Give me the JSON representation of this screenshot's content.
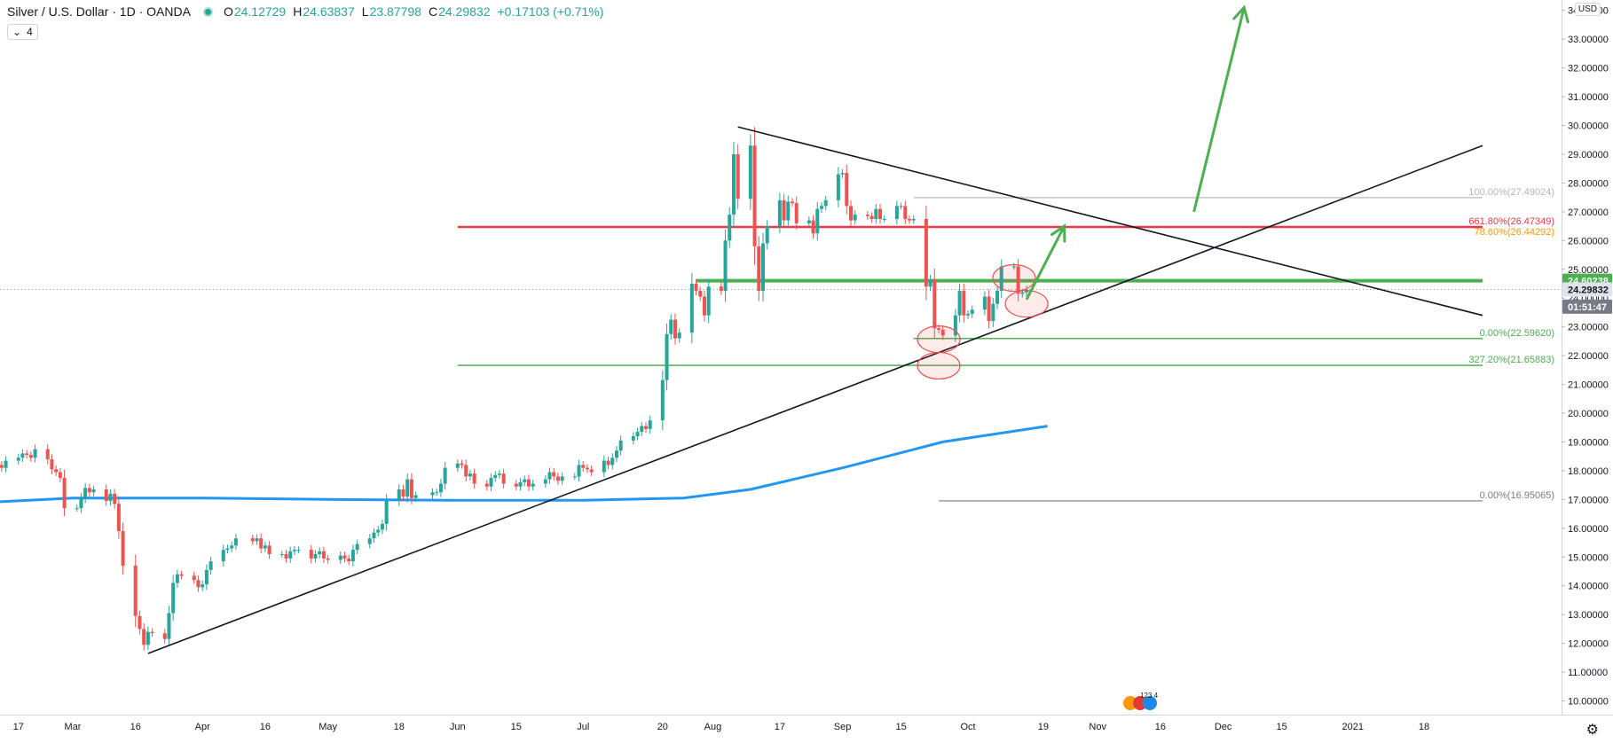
{
  "header": {
    "symbol": "Silver / U.S. Dollar · 1D · OANDA",
    "open_label": "O",
    "open": "24.12729",
    "high_label": "H",
    "high": "24.63837",
    "low_label": "L",
    "low": "23.87798",
    "close_label": "C",
    "close": "24.29832",
    "change": "+0.17103 (+0.71%)"
  },
  "indicator_toggle": "4",
  "axis": {
    "currency": "USD"
  },
  "price_tags": {
    "level": "24.60238",
    "last": "24.29832",
    "countdown": "01:51:47"
  },
  "events_label": "123 4",
  "colors": {
    "up": "#26a69a",
    "down": "#ef5350",
    "ma": "#2196f3",
    "resistance": "#f23645",
    "support": "#4caf50",
    "trend": "#131722",
    "fib_orange": "#ff9800",
    "fib_grey": "#b2b5be"
  },
  "chart_data": {
    "type": "candlestick",
    "symbol": "Silver / U.S. Dollar",
    "interval": "1D",
    "source": "OANDA",
    "ylim": [
      10,
      34.6
    ],
    "y_ticks": [
      "10.00000",
      "11.00000",
      "12.00000",
      "13.00000",
      "14.00000",
      "15.00000",
      "16.00000",
      "17.00000",
      "18.00000",
      "19.00000",
      "20.00000",
      "21.00000",
      "22.00000",
      "23.00000",
      "24.00000",
      "25.00000",
      "26.00000",
      "27.00000",
      "28.00000",
      "29.00000",
      "30.00000",
      "31.00000",
      "32.00000",
      "33.00000",
      "34.00000"
    ],
    "x_ticks": [
      {
        "d": "2020-02-17",
        "l": "17"
      },
      {
        "d": "2020-03-01",
        "l": "Mar"
      },
      {
        "d": "2020-03-16",
        "l": "16"
      },
      {
        "d": "2020-04-01",
        "l": "Apr"
      },
      {
        "d": "2020-04-16",
        "l": "16"
      },
      {
        "d": "2020-05-01",
        "l": "May"
      },
      {
        "d": "2020-05-18",
        "l": "18"
      },
      {
        "d": "2020-06-01",
        "l": "Jun"
      },
      {
        "d": "2020-06-15",
        "l": "15"
      },
      {
        "d": "2020-07-01",
        "l": "Jul"
      },
      {
        "d": "2020-07-20",
        "l": "20"
      },
      {
        "d": "2020-08-01",
        "l": "Aug"
      },
      {
        "d": "2020-08-17",
        "l": "17"
      },
      {
        "d": "2020-09-01",
        "l": "Sep"
      },
      {
        "d": "2020-09-15",
        "l": "15"
      },
      {
        "d": "2020-10-01",
        "l": "Oct"
      },
      {
        "d": "2020-10-19",
        "l": "19"
      },
      {
        "d": "2020-11-01",
        "l": "Nov"
      },
      {
        "d": "2020-11-16",
        "l": "16"
      },
      {
        "d": "2020-12-01",
        "l": "Dec"
      },
      {
        "d": "2020-12-15",
        "l": "15"
      },
      {
        "d": "2021-01-01",
        "l": "2021"
      },
      {
        "d": "2021-01-18",
        "l": "18"
      }
    ],
    "candles_close": [
      {
        "d": "2020-02-03",
        "c": 17.55
      },
      {
        "d": "2020-02-04",
        "c": 17.6
      },
      {
        "d": "2020-02-05",
        "c": 17.7
      },
      {
        "d": "2020-02-06",
        "c": 17.75
      },
      {
        "d": "2020-02-07",
        "c": 17.85
      },
      {
        "d": "2020-02-10",
        "c": 17.85
      },
      {
        "d": "2020-02-11",
        "c": 18.05
      },
      {
        "d": "2020-02-12",
        "c": 18.2
      },
      {
        "d": "2020-02-13",
        "c": 18.1
      },
      {
        "d": "2020-02-14",
        "c": 18.35
      },
      {
        "d": "2020-02-17",
        "c": 18.45
      },
      {
        "d": "2020-02-18",
        "c": 18.6
      },
      {
        "d": "2020-02-19",
        "c": 18.55
      },
      {
        "d": "2020-02-20",
        "c": 18.45
      },
      {
        "d": "2020-02-21",
        "c": 18.75
      },
      {
        "d": "2020-02-24",
        "c": 18.4
      },
      {
        "d": "2020-02-25",
        "c": 18.05
      },
      {
        "d": "2020-02-26",
        "c": 17.95
      },
      {
        "d": "2020-02-27",
        "c": 17.75
      },
      {
        "d": "2020-02-28",
        "c": 16.7
      },
      {
        "d": "2020-03-02",
        "c": 16.7
      },
      {
        "d": "2020-03-03",
        "c": 17.05
      },
      {
        "d": "2020-03-04",
        "c": 17.4
      },
      {
        "d": "2020-03-05",
        "c": 17.25
      },
      {
        "d": "2020-03-06",
        "c": 17.35
      },
      {
        "d": "2020-03-09",
        "c": 16.95
      },
      {
        "d": "2020-03-10",
        "c": 17.2
      },
      {
        "d": "2020-03-11",
        "c": 16.85
      },
      {
        "d": "2020-03-12",
        "c": 15.9
      },
      {
        "d": "2020-03-13",
        "c": 14.7
      },
      {
        "d": "2020-03-16",
        "c": 12.95
      },
      {
        "d": "2020-03-17",
        "c": 12.5
      },
      {
        "d": "2020-03-18",
        "c": 11.95
      },
      {
        "d": "2020-03-19",
        "c": 12.4
      },
      {
        "d": "2020-03-20",
        "c": 12.35
      },
      {
        "d": "2020-03-23",
        "c": 12.15
      },
      {
        "d": "2020-03-24",
        "c": 13.05
      },
      {
        "d": "2020-03-25",
        "c": 14.1
      },
      {
        "d": "2020-03-26",
        "c": 14.4
      },
      {
        "d": "2020-03-27",
        "c": 14.35
      },
      {
        "d": "2020-03-30",
        "c": 14.2
      },
      {
        "d": "2020-03-31",
        "c": 13.95
      },
      {
        "d": "2020-04-01",
        "c": 14.05
      },
      {
        "d": "2020-04-02",
        "c": 14.55
      },
      {
        "d": "2020-04-03",
        "c": 14.85
      },
      {
        "d": "2020-04-06",
        "c": 15.25
      },
      {
        "d": "2020-04-07",
        "c": 15.3
      },
      {
        "d": "2020-04-08",
        "c": 15.4
      },
      {
        "d": "2020-04-09",
        "c": 15.65
      },
      {
        "d": "2020-04-13",
        "c": 15.55
      },
      {
        "d": "2020-04-14",
        "c": 15.65
      },
      {
        "d": "2020-04-15",
        "c": 15.3
      },
      {
        "d": "2020-04-16",
        "c": 15.4
      },
      {
        "d": "2020-04-17",
        "c": 15.1
      },
      {
        "d": "2020-04-20",
        "c": 15.1
      },
      {
        "d": "2020-04-21",
        "c": 14.95
      },
      {
        "d": "2020-04-22",
        "c": 15.2
      },
      {
        "d": "2020-04-23",
        "c": 15.25
      },
      {
        "d": "2020-04-24",
        "c": 15.25
      },
      {
        "d": "2020-04-27",
        "c": 14.95
      },
      {
        "d": "2020-04-28",
        "c": 15.1
      },
      {
        "d": "2020-04-29",
        "c": 15.2
      },
      {
        "d": "2020-04-30",
        "c": 14.95
      },
      {
        "d": "2020-05-01",
        "c": 14.9
      },
      {
        "d": "2020-05-04",
        "c": 15.05
      },
      {
        "d": "2020-05-05",
        "c": 14.95
      },
      {
        "d": "2020-05-06",
        "c": 14.85
      },
      {
        "d": "2020-05-07",
        "c": 15.25
      },
      {
        "d": "2020-05-08",
        "c": 15.45
      },
      {
        "d": "2020-05-11",
        "c": 15.65
      },
      {
        "d": "2020-05-12",
        "c": 15.85
      },
      {
        "d": "2020-05-13",
        "c": 15.95
      },
      {
        "d": "2020-05-14",
        "c": 16.15
      },
      {
        "d": "2020-05-15",
        "c": 16.95
      },
      {
        "d": "2020-05-18",
        "c": 17.35
      },
      {
        "d": "2020-05-19",
        "c": 17.1
      },
      {
        "d": "2020-05-20",
        "c": 17.7
      },
      {
        "d": "2020-05-21",
        "c": 17.05
      },
      {
        "d": "2020-05-22",
        "c": 17.15
      },
      {
        "d": "2020-05-26",
        "c": 17.25
      },
      {
        "d": "2020-05-27",
        "c": 17.25
      },
      {
        "d": "2020-05-28",
        "c": 17.55
      },
      {
        "d": "2020-05-29",
        "c": 18.1
      },
      {
        "d": "2020-06-01",
        "c": 18.25
      },
      {
        "d": "2020-06-02",
        "c": 18.2
      },
      {
        "d": "2020-06-03",
        "c": 17.8
      },
      {
        "d": "2020-06-04",
        "c": 17.9
      },
      {
        "d": "2020-06-05",
        "c": 17.55
      },
      {
        "d": "2020-06-08",
        "c": 17.45
      },
      {
        "d": "2020-06-09",
        "c": 17.75
      },
      {
        "d": "2020-06-10",
        "c": 17.85
      },
      {
        "d": "2020-06-11",
        "c": 17.9
      },
      {
        "d": "2020-06-12",
        "c": 17.55
      },
      {
        "d": "2020-06-15",
        "c": 17.45
      },
      {
        "d": "2020-06-16",
        "c": 17.6
      },
      {
        "d": "2020-06-17",
        "c": 17.7
      },
      {
        "d": "2020-06-18",
        "c": 17.45
      },
      {
        "d": "2020-06-19",
        "c": 17.55
      },
      {
        "d": "2020-06-22",
        "c": 17.7
      },
      {
        "d": "2020-06-23",
        "c": 17.95
      },
      {
        "d": "2020-06-24",
        "c": 17.8
      },
      {
        "d": "2020-06-25",
        "c": 17.65
      },
      {
        "d": "2020-06-26",
        "c": 17.8
      },
      {
        "d": "2020-06-29",
        "c": 17.8
      },
      {
        "d": "2020-06-30",
        "c": 18.2
      },
      {
        "d": "2020-07-01",
        "c": 18.1
      },
      {
        "d": "2020-07-02",
        "c": 18.05
      },
      {
        "d": "2020-07-03",
        "c": 17.95
      },
      {
        "d": "2020-07-06",
        "c": 18.35
      },
      {
        "d": "2020-07-07",
        "c": 18.2
      },
      {
        "d": "2020-07-08",
        "c": 18.45
      },
      {
        "d": "2020-07-09",
        "c": 18.7
      },
      {
        "d": "2020-07-10",
        "c": 19.05
      },
      {
        "d": "2020-07-13",
        "c": 19.2
      },
      {
        "d": "2020-07-14",
        "c": 19.35
      },
      {
        "d": "2020-07-15",
        "c": 19.55
      },
      {
        "d": "2020-07-16",
        "c": 19.45
      },
      {
        "d": "2020-07-17",
        "c": 19.75
      },
      {
        "d": "2020-07-20",
        "c": 21.15
      },
      {
        "d": "2020-07-21",
        "c": 22.75
      },
      {
        "d": "2020-07-22",
        "c": 23.25
      },
      {
        "d": "2020-07-23",
        "c": 22.6
      },
      {
        "d": "2020-07-24",
        "c": 22.8
      },
      {
        "d": "2020-07-27",
        "c": 24.5
      },
      {
        "d": "2020-07-28",
        "c": 24.25
      },
      {
        "d": "2020-07-29",
        "c": 24.05
      },
      {
        "d": "2020-07-30",
        "c": 23.4
      },
      {
        "d": "2020-07-31",
        "c": 24.4
      },
      {
        "d": "2020-08-03",
        "c": 24.25
      },
      {
        "d": "2020-08-04",
        "c": 26.0
      },
      {
        "d": "2020-08-05",
        "c": 26.9
      },
      {
        "d": "2020-08-06",
        "c": 29.0
      },
      {
        "d": "2020-08-07",
        "c": 27.45
      },
      {
        "d": "2020-08-10",
        "c": 29.3
      },
      {
        "d": "2020-08-11",
        "c": 25.8
      },
      {
        "d": "2020-08-12",
        "c": 24.25
      },
      {
        "d": "2020-08-13",
        "c": 25.9
      },
      {
        "d": "2020-08-14",
        "c": 26.5
      },
      {
        "d": "2020-08-17",
        "c": 27.4
      },
      {
        "d": "2020-08-18",
        "c": 26.7
      },
      {
        "d": "2020-08-19",
        "c": 27.35
      },
      {
        "d": "2020-08-20",
        "c": 27.3
      },
      {
        "d": "2020-08-21",
        "c": 26.6
      },
      {
        "d": "2020-08-24",
        "c": 26.7
      },
      {
        "d": "2020-08-25",
        "c": 26.25
      },
      {
        "d": "2020-08-26",
        "c": 27.1
      },
      {
        "d": "2020-08-27",
        "c": 27.2
      },
      {
        "d": "2020-08-28",
        "c": 27.4
      },
      {
        "d": "2020-08-31",
        "c": 28.3
      },
      {
        "d": "2020-09-01",
        "c": 28.35
      },
      {
        "d": "2020-09-02",
        "c": 27.2
      },
      {
        "d": "2020-09-03",
        "c": 26.7
      },
      {
        "d": "2020-09-04",
        "c": 26.9
      },
      {
        "d": "2020-09-07",
        "c": 26.85
      },
      {
        "d": "2020-09-08",
        "c": 26.75
      },
      {
        "d": "2020-09-09",
        "c": 27.1
      },
      {
        "d": "2020-09-10",
        "c": 26.75
      },
      {
        "d": "2020-09-11",
        "c": 26.75
      },
      {
        "d": "2020-09-14",
        "c": 27.2
      },
      {
        "d": "2020-09-15",
        "c": 27.2
      },
      {
        "d": "2020-09-16",
        "c": 26.75
      },
      {
        "d": "2020-09-17",
        "c": 26.7
      },
      {
        "d": "2020-09-18",
        "c": 26.75
      },
      {
        "d": "2020-09-21",
        "c": 24.4
      },
      {
        "d": "2020-09-22",
        "c": 24.65
      },
      {
        "d": "2020-09-23",
        "c": 22.95
      },
      {
        "d": "2020-09-24",
        "c": 22.9
      },
      {
        "d": "2020-09-25",
        "c": 22.7
      },
      {
        "d": "2020-09-28",
        "c": 23.4
      },
      {
        "d": "2020-09-29",
        "c": 24.25
      },
      {
        "d": "2020-09-30",
        "c": 23.4
      },
      {
        "d": "2020-10-01",
        "c": 23.45
      },
      {
        "d": "2020-10-02",
        "c": 23.6
      },
      {
        "d": "2020-10-05",
        "c": 24.05
      },
      {
        "d": "2020-10-06",
        "c": 23.2
      },
      {
        "d": "2020-10-07",
        "c": 23.8
      },
      {
        "d": "2020-10-08",
        "c": 24.25
      },
      {
        "d": "2020-10-09",
        "c": 25.1
      },
      {
        "d": "2020-10-12",
        "c": 25.1
      },
      {
        "d": "2020-10-13",
        "c": 24.15
      },
      {
        "d": "2020-10-14",
        "c": 24.2
      },
      {
        "d": "2020-10-15",
        "c": 24.3
      }
    ],
    "ma_series": [
      {
        "d": "2020-02-03",
        "v": 16.85
      },
      {
        "d": "2020-03-01",
        "v": 17.05
      },
      {
        "d": "2020-04-01",
        "v": 17.05
      },
      {
        "d": "2020-05-01",
        "v": 17.0
      },
      {
        "d": "2020-06-01",
        "v": 16.97
      },
      {
        "d": "2020-07-01",
        "v": 16.97
      },
      {
        "d": "2020-07-25",
        "v": 17.05
      },
      {
        "d": "2020-08-10",
        "v": 17.35
      },
      {
        "d": "2020-09-01",
        "v": 18.1
      },
      {
        "d": "2020-09-25",
        "v": 19.0
      },
      {
        "d": "2020-10-20",
        "v": 19.55
      }
    ],
    "horizontal_levels": [
      {
        "value": 26.47,
        "role": "resistance",
        "start": "2020-06-01",
        "end": "2021-02-01"
      },
      {
        "value": 24.60238,
        "role": "support",
        "start": "2020-07-28",
        "end": "2021-02-01"
      },
      {
        "value": 22.5962,
        "role": "fib-zero",
        "start": "2020-09-18",
        "end": "2021-02-01"
      },
      {
        "value": 21.65883,
        "role": "fib-ext",
        "start": "2020-06-01",
        "end": "2021-02-01"
      },
      {
        "value": 27.49024,
        "role": "fib-100",
        "start": "2020-09-18",
        "end": "2021-02-01"
      },
      {
        "value": 16.95065,
        "role": "fib-zero-lower",
        "start": "2020-09-24",
        "end": "2021-02-01"
      }
    ],
    "fib_labels": [
      {
        "value": 27.49024,
        "text": "100.00%(27.49024)",
        "color": "#b2b5be"
      },
      {
        "value": 26.47349,
        "text": "661.80%(26.47349)",
        "color": "#f23645"
      },
      {
        "value": 26.44292,
        "text": "78.60%(26.44292)",
        "color": "#ff9800"
      },
      {
        "value": 22.5962,
        "text": "0.00%(22.59620)",
        "color": "#4caf50"
      },
      {
        "value": 21.65883,
        "text": "327.20%(21.65883)",
        "color": "#4caf50"
      },
      {
        "value": 16.95065,
        "text": "0.00%(16.95065)",
        "color": "#787b86"
      }
    ],
    "trendlines": [
      {
        "from": {
          "d": "2020-03-19",
          "v": 11.65
        },
        "to": {
          "d": "2021-02-01",
          "v": 29.3
        },
        "color": "#131722"
      },
      {
        "from": {
          "d": "2020-08-07",
          "v": 29.95
        },
        "to": {
          "d": "2021-02-01",
          "v": 23.4
        },
        "color": "#131722"
      }
    ],
    "arrows": [
      {
        "from": {
          "d": "2020-10-15",
          "v": 23.95
        },
        "to": {
          "d": "2020-10-24",
          "v": 26.5
        },
        "color": "#4caf50"
      },
      {
        "from": {
          "d": "2020-11-24",
          "v": 27.0
        },
        "to": {
          "d": "2020-12-06",
          "v": 34.1
        },
        "color": "#4caf50"
      }
    ],
    "ellipses": [
      {
        "d": "2020-09-24",
        "v": 22.57
      },
      {
        "d": "2020-09-24",
        "v": 21.65
      },
      {
        "d": "2020-10-12",
        "v": 24.7
      },
      {
        "d": "2020-10-15",
        "v": 23.8
      }
    ]
  }
}
